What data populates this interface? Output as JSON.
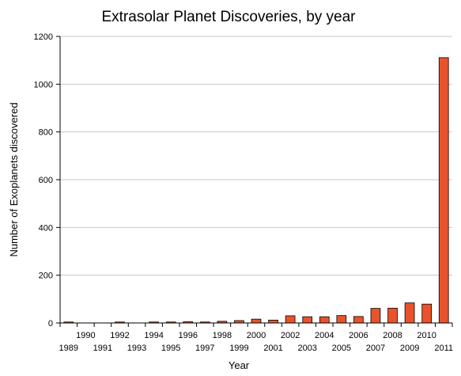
{
  "chart_data": {
    "type": "bar",
    "title": "Extrasolar Planet Discoveries, by year",
    "xlabel": "Year",
    "ylabel": "Number of Exoplanets discovered",
    "ylim": [
      0,
      1200
    ],
    "yticks": [
      "0",
      "200",
      "400",
      "600",
      "800",
      "1000",
      "1200"
    ],
    "grid": true,
    "bar_color": "#e8532b",
    "categories": [
      "1989",
      "1990",
      "1991",
      "1992",
      "1993",
      "1994",
      "1995",
      "1996",
      "1997",
      "1998",
      "1999",
      "2000",
      "2001",
      "2002",
      "2003",
      "2004",
      "2005",
      "2006",
      "2007",
      "2008",
      "2009",
      "2010",
      "2011"
    ],
    "values": [
      1,
      0,
      0,
      3,
      0,
      1,
      2,
      5,
      1,
      7,
      10,
      16,
      12,
      30,
      26,
      26,
      31,
      27,
      61,
      62,
      84,
      79,
      1111
    ]
  }
}
